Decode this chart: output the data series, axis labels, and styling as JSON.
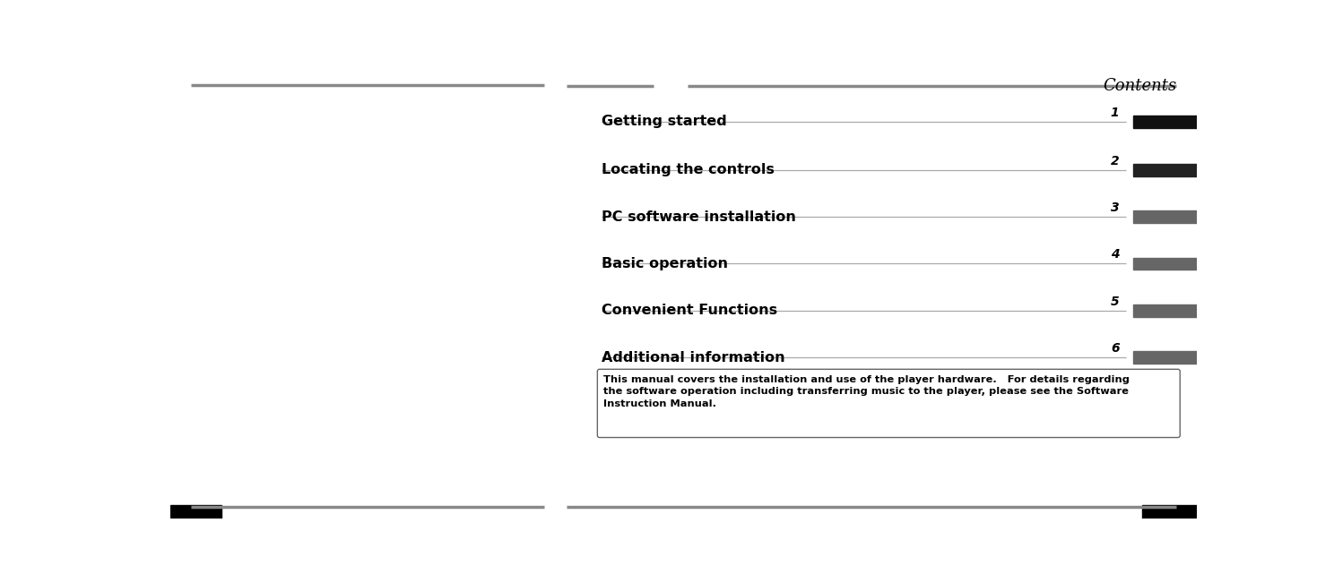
{
  "title": "Contents",
  "entries": [
    {
      "label": "Getting started",
      "number": "1",
      "bar_color": "#111111"
    },
    {
      "label": "Locating the controls",
      "number": "2",
      "bar_color": "#222222"
    },
    {
      "label": "PC software installation",
      "number": "3",
      "bar_color": "#666666"
    },
    {
      "label": "Basic operation",
      "number": "4",
      "bar_color": "#666666"
    },
    {
      "label": "Convenient Functions",
      "number": "5",
      "bar_color": "#666666"
    },
    {
      "label": "Additional information",
      "number": "6",
      "bar_color": "#666666"
    }
  ],
  "note_text": "This manual covers the installation and use of the player hardware.   For details regarding\nthe software operation including transferring music to the player, please see the Software\nInstruction Manual.",
  "bg_color": "#ffffff",
  "line_color": "#888888",
  "text_color": "#000000"
}
